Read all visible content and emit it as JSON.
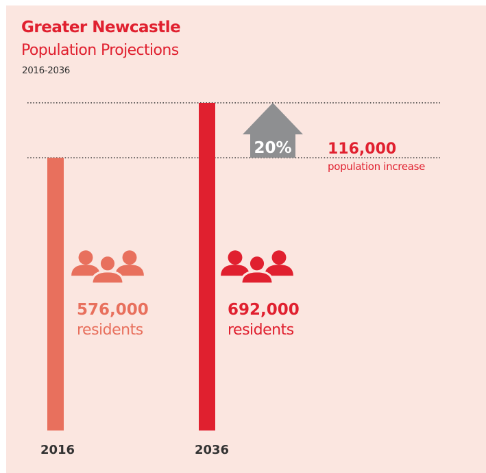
{
  "colors": {
    "background": "#fbe6e0",
    "accent": "#e0202f",
    "accent_light": "#e8705d",
    "arrow": "#8e8f91",
    "gridline": "#333333",
    "year_label": "#333333"
  },
  "header": {
    "title": "Greater Newcastle",
    "subtitle": "Population Projections",
    "years": "2016-2036"
  },
  "chart_data": {
    "type": "bar",
    "title": "Greater Newcastle",
    "subtitle": "Population Projections",
    "categories": [
      "2016",
      "2036"
    ],
    "values": [
      576000,
      692000
    ],
    "value_labels": [
      "576,000",
      "692,000"
    ],
    "unit_labels": [
      "residents",
      "residents"
    ],
    "bar_colors": [
      "#e8705d",
      "#e0202f"
    ],
    "icon_colors": [
      "#e8705d",
      "#e0202f"
    ],
    "icons": [
      "people-group-icon",
      "people-group-icon"
    ],
    "ylim": [
      0,
      692000
    ],
    "reference_lines": [
      576000,
      692000
    ],
    "grid": false,
    "increase": {
      "percent_label": "20%",
      "value_label": "116,000",
      "text": "population increase",
      "icon": "up-arrow-icon"
    }
  }
}
